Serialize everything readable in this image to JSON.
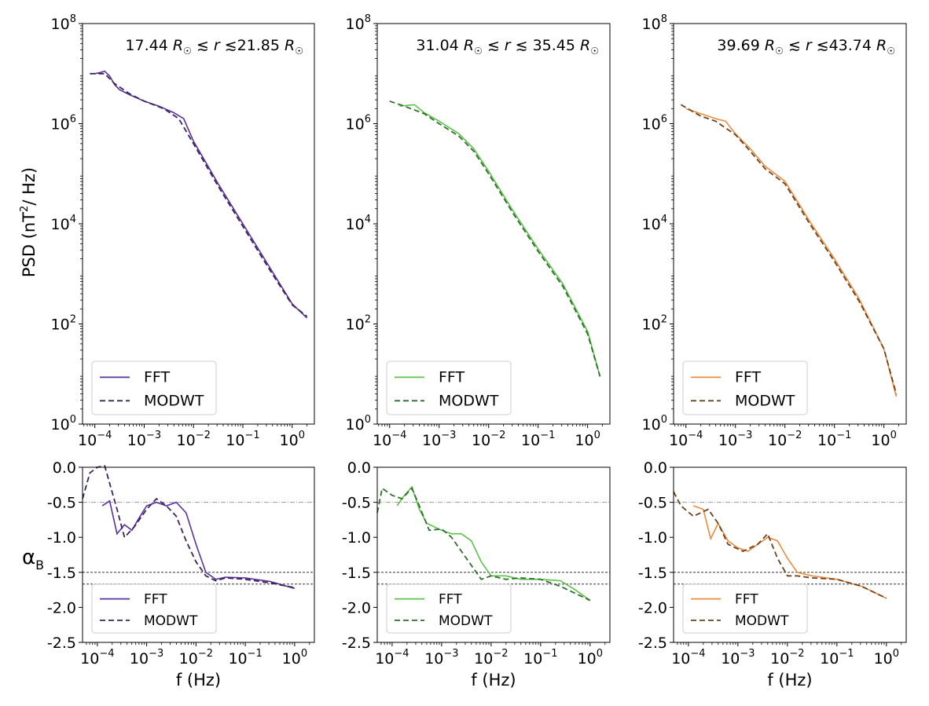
{
  "figure": {
    "ylabel_top": "PSD (nT",
    "ylabel_top_sup": "2",
    "ylabel_top_end": "/ Hz)",
    "ylabel_bottom": "α",
    "ylabel_bottom_sub": "B",
    "xlabel": "f (Hz)",
    "colors": {
      "purple_fft": "#5a2f9e",
      "purple_modwt": "#3b2458",
      "green_fft": "#5cc24a",
      "green_modwt": "#2f6e2a",
      "orange_fft": "#ef8a3c",
      "orange_modwt": "#6b4320",
      "ref_line": "#999999",
      "hline": "#333333"
    },
    "top_y_ticks": [
      {
        "base": "10",
        "exp": "0",
        "v": 0
      },
      {
        "base": "10",
        "exp": "2",
        "v": 2
      },
      {
        "base": "10",
        "exp": "4",
        "v": 4
      },
      {
        "base": "10",
        "exp": "6",
        "v": 6
      },
      {
        "base": "10",
        "exp": "8",
        "v": 8
      }
    ],
    "x_ticks": [
      {
        "base": "10",
        "exp": "−4",
        "v": -4
      },
      {
        "base": "10",
        "exp": "−3",
        "v": -3
      },
      {
        "base": "10",
        "exp": "−2",
        "v": -2
      },
      {
        "base": "10",
        "exp": "−1",
        "v": -1
      },
      {
        "base": "10",
        "exp": "0",
        "v": 0
      }
    ],
    "bottom_y_ticks": [
      "0.0",
      "-0.5",
      "-1.0",
      "-1.5",
      "-2.0",
      "-2.5"
    ]
  },
  "chart_data": [
    {
      "type": "line",
      "panel": "PSD 1",
      "title_parts": [
        "17.44 ",
        "R",
        "☉",
        " ≲ ",
        "r",
        " ≲21.85 ",
        "R",
        "☉"
      ],
      "xscale": "log",
      "yscale": "log",
      "xlim_log10": [
        -4.25,
        0.45
      ],
      "ylim_log10": [
        0,
        8
      ],
      "legend": [
        "FFT",
        "MODWT"
      ],
      "series": [
        {
          "name": "FFT",
          "style": "solid",
          "points": [
            [
              -4.0,
              7.0
            ],
            [
              -3.9,
              7.02
            ],
            [
              -3.8,
              7.05
            ],
            [
              -3.7,
              6.95
            ],
            [
              -3.6,
              6.78
            ],
            [
              -3.5,
              6.68
            ],
            [
              -3.3,
              6.58
            ],
            [
              -3.0,
              6.45
            ],
            [
              -2.7,
              6.35
            ],
            [
              -2.4,
              6.22
            ],
            [
              -2.2,
              6.1
            ],
            [
              -2.0,
              5.65
            ],
            [
              -1.5,
              4.8
            ],
            [
              -1.0,
              4.0
            ],
            [
              -0.5,
              3.2
            ],
            [
              0.0,
              2.4
            ],
            [
              0.3,
              2.12
            ]
          ]
        },
        {
          "name": "MODWT",
          "style": "dashed",
          "points": [
            [
              -4.1,
              7.0
            ],
            [
              -3.8,
              7.0
            ],
            [
              -3.6,
              6.8
            ],
            [
              -3.3,
              6.6
            ],
            [
              -3.0,
              6.45
            ],
            [
              -2.6,
              6.3
            ],
            [
              -2.3,
              6.1
            ],
            [
              -2.0,
              5.6
            ],
            [
              -1.5,
              4.75
            ],
            [
              -1.0,
              3.95
            ],
            [
              -0.5,
              3.15
            ],
            [
              0.0,
              2.38
            ],
            [
              0.3,
              2.15
            ]
          ]
        }
      ]
    },
    {
      "type": "line",
      "panel": "PSD 2",
      "title_parts": [
        "31.04 ",
        "R",
        "☉",
        " ≲ ",
        "r",
        " ≲ 35.45 ",
        "R",
        "☉"
      ],
      "xscale": "log",
      "yscale": "log",
      "xlim_log10": [
        -4.25,
        0.45
      ],
      "ylim_log10": [
        0,
        8
      ],
      "legend": [
        "FFT",
        "MODWT"
      ],
      "series": [
        {
          "name": "FFT",
          "style": "solid",
          "points": [
            [
              -3.8,
              6.35
            ],
            [
              -3.5,
              6.38
            ],
            [
              -3.3,
              6.22
            ],
            [
              -3.0,
              6.05
            ],
            [
              -2.6,
              5.8
            ],
            [
              -2.3,
              5.5
            ],
            [
              -2.0,
              5.05
            ],
            [
              -1.5,
              4.25
            ],
            [
              -1.0,
              3.5
            ],
            [
              -0.5,
              2.8
            ],
            [
              0.0,
              1.85
            ],
            [
              0.25,
              0.95
            ]
          ]
        },
        {
          "name": "MODWT",
          "style": "dashed",
          "points": [
            [
              -4.0,
              6.45
            ],
            [
              -3.7,
              6.35
            ],
            [
              -3.3,
              6.2
            ],
            [
              -3.0,
              6.0
            ],
            [
              -2.6,
              5.75
            ],
            [
              -2.3,
              5.45
            ],
            [
              -2.0,
              5.0
            ],
            [
              -1.5,
              4.2
            ],
            [
              -1.0,
              3.45
            ],
            [
              -0.5,
              2.75
            ],
            [
              0.0,
              1.8
            ],
            [
              0.25,
              0.95
            ]
          ]
        }
      ]
    },
    {
      "type": "line",
      "panel": "PSD 3",
      "title_parts": [
        "39.69 ",
        "R",
        "☉",
        " ≲ ",
        "r",
        " ≲43.74 ",
        "R",
        "☉"
      ],
      "xscale": "log",
      "yscale": "log",
      "xlim_log10": [
        -4.25,
        0.45
      ],
      "ylim_log10": [
        0,
        8
      ],
      "legend": [
        "FFT",
        "MODWT"
      ],
      "series": [
        {
          "name": "FFT",
          "style": "solid",
          "points": [
            [
              -4.0,
              6.3
            ],
            [
              -3.7,
              6.2
            ],
            [
              -3.4,
              6.1
            ],
            [
              -3.2,
              6.05
            ],
            [
              -3.0,
              5.8
            ],
            [
              -2.7,
              5.5
            ],
            [
              -2.4,
              5.15
            ],
            [
              -2.0,
              4.85
            ],
            [
              -1.5,
              4.05
            ],
            [
              -1.0,
              3.3
            ],
            [
              -0.5,
              2.5
            ],
            [
              0.0,
              1.5
            ],
            [
              0.25,
              0.55
            ]
          ]
        },
        {
          "name": "MODWT",
          "style": "dashed",
          "points": [
            [
              -4.1,
              6.38
            ],
            [
              -3.7,
              6.15
            ],
            [
              -3.4,
              6.05
            ],
            [
              -3.0,
              5.78
            ],
            [
              -2.7,
              5.45
            ],
            [
              -2.4,
              5.1
            ],
            [
              -2.0,
              4.8
            ],
            [
              -1.5,
              4.0
            ],
            [
              -1.0,
              3.25
            ],
            [
              -0.5,
              2.45
            ],
            [
              0.0,
              1.5
            ],
            [
              0.25,
              0.6
            ]
          ]
        }
      ]
    },
    {
      "type": "line",
      "panel": "alpha 1",
      "xscale": "log",
      "xlim_log10": [
        -4.3,
        0.4
      ],
      "ylim": [
        -2.5,
        0.0
      ],
      "legend": [
        "FFT",
        "MODWT"
      ],
      "hlines": [
        -1.5,
        -1.667
      ],
      "ref_line": -0.5,
      "series": [
        {
          "name": "FFT",
          "style": "solid",
          "points": [
            [
              -3.9,
              -0.55
            ],
            [
              -3.75,
              -0.48
            ],
            [
              -3.6,
              -0.95
            ],
            [
              -3.45,
              -0.82
            ],
            [
              -3.3,
              -0.9
            ],
            [
              -3.15,
              -0.72
            ],
            [
              -3.0,
              -0.55
            ],
            [
              -2.8,
              -0.5
            ],
            [
              -2.6,
              -0.55
            ],
            [
              -2.4,
              -0.5
            ],
            [
              -2.2,
              -0.65
            ],
            [
              -2.0,
              -1.1
            ],
            [
              -1.8,
              -1.5
            ],
            [
              -1.6,
              -1.6
            ],
            [
              -1.4,
              -1.57
            ],
            [
              -1.0,
              -1.58
            ],
            [
              -0.5,
              -1.63
            ],
            [
              0.0,
              -1.73
            ]
          ]
        },
        {
          "name": "MODWT",
          "style": "dashed",
          "points": [
            [
              -4.3,
              -0.45
            ],
            [
              -4.15,
              -0.08
            ],
            [
              -4.0,
              0.0
            ],
            [
              -3.85,
              0.02
            ],
            [
              -3.6,
              -0.6
            ],
            [
              -3.45,
              -1.0
            ],
            [
              -3.25,
              -0.85
            ],
            [
              -3.0,
              -0.6
            ],
            [
              -2.8,
              -0.45
            ],
            [
              -2.6,
              -0.55
            ],
            [
              -2.4,
              -0.7
            ],
            [
              -2.2,
              -1.05
            ],
            [
              -2.0,
              -1.35
            ],
            [
              -1.8,
              -1.55
            ],
            [
              -1.6,
              -1.62
            ],
            [
              -1.4,
              -1.58
            ],
            [
              -1.0,
              -1.6
            ],
            [
              -0.5,
              -1.65
            ],
            [
              0.0,
              -1.72
            ]
          ]
        }
      ]
    },
    {
      "type": "line",
      "panel": "alpha 2",
      "xscale": "log",
      "xlim_log10": [
        -4.3,
        0.4
      ],
      "ylim": [
        -2.5,
        0.0
      ],
      "legend": [
        "FFT",
        "MODWT"
      ],
      "hlines": [
        -1.5,
        -1.667
      ],
      "ref_line": -0.5,
      "series": [
        {
          "name": "FFT",
          "style": "solid",
          "points": [
            [
              -3.9,
              -0.55
            ],
            [
              -3.75,
              -0.4
            ],
            [
              -3.6,
              -0.28
            ],
            [
              -3.45,
              -0.6
            ],
            [
              -3.3,
              -0.8
            ],
            [
              -3.0,
              -0.9
            ],
            [
              -2.8,
              -0.95
            ],
            [
              -2.6,
              -0.95
            ],
            [
              -2.4,
              -1.05
            ],
            [
              -2.2,
              -1.35
            ],
            [
              -2.0,
              -1.55
            ],
            [
              -1.7,
              -1.55
            ],
            [
              -1.4,
              -1.6
            ],
            [
              -1.0,
              -1.6
            ],
            [
              -0.6,
              -1.62
            ],
            [
              -0.3,
              -1.75
            ],
            [
              0.0,
              -1.9
            ]
          ]
        },
        {
          "name": "MODWT",
          "style": "dashed",
          "points": [
            [
              -4.3,
              -0.65
            ],
            [
              -4.2,
              -0.3
            ],
            [
              -4.0,
              -0.4
            ],
            [
              -3.8,
              -0.45
            ],
            [
              -3.6,
              -0.3
            ],
            [
              -3.45,
              -0.55
            ],
            [
              -3.25,
              -0.9
            ],
            [
              -3.0,
              -0.88
            ],
            [
              -2.8,
              -1.0
            ],
            [
              -2.6,
              -1.2
            ],
            [
              -2.4,
              -1.4
            ],
            [
              -2.2,
              -1.6
            ],
            [
              -2.0,
              -1.55
            ],
            [
              -1.7,
              -1.6
            ],
            [
              -1.4,
              -1.58
            ],
            [
              -1.0,
              -1.6
            ],
            [
              -0.6,
              -1.7
            ],
            [
              -0.3,
              -1.8
            ],
            [
              0.0,
              -1.9
            ]
          ]
        }
      ]
    },
    {
      "type": "line",
      "panel": "alpha 3",
      "xscale": "log",
      "xlim_log10": [
        -4.3,
        0.4
      ],
      "ylim": [
        -2.5,
        0.0
      ],
      "legend": [
        "FFT",
        "MODWT"
      ],
      "hlines": [
        -1.5,
        -1.667
      ],
      "ref_line": -0.5,
      "series": [
        {
          "name": "FFT",
          "style": "solid",
          "points": [
            [
              -3.9,
              -0.55
            ],
            [
              -3.7,
              -0.6
            ],
            [
              -3.55,
              -1.02
            ],
            [
              -3.4,
              -0.8
            ],
            [
              -3.2,
              -1.05
            ],
            [
              -3.0,
              -1.15
            ],
            [
              -2.8,
              -1.2
            ],
            [
              -2.6,
              -1.1
            ],
            [
              -2.4,
              -1.0
            ],
            [
              -2.2,
              -1.05
            ],
            [
              -2.0,
              -1.3
            ],
            [
              -1.8,
              -1.5
            ],
            [
              -1.5,
              -1.55
            ],
            [
              -1.0,
              -1.6
            ],
            [
              -0.5,
              -1.7
            ],
            [
              0.0,
              -1.87
            ]
          ]
        },
        {
          "name": "MODWT",
          "style": "dashed",
          "points": [
            [
              -4.3,
              -0.35
            ],
            [
              -4.15,
              -0.55
            ],
            [
              -3.9,
              -0.7
            ],
            [
              -3.6,
              -0.6
            ],
            [
              -3.4,
              -0.8
            ],
            [
              -3.2,
              -1.1
            ],
            [
              -2.9,
              -1.2
            ],
            [
              -2.6,
              -1.1
            ],
            [
              -2.4,
              -0.95
            ],
            [
              -2.2,
              -1.3
            ],
            [
              -2.0,
              -1.55
            ],
            [
              -1.8,
              -1.55
            ],
            [
              -1.5,
              -1.58
            ],
            [
              -1.0,
              -1.6
            ],
            [
              -0.5,
              -1.7
            ],
            [
              0.0,
              -1.87
            ]
          ]
        }
      ]
    }
  ]
}
